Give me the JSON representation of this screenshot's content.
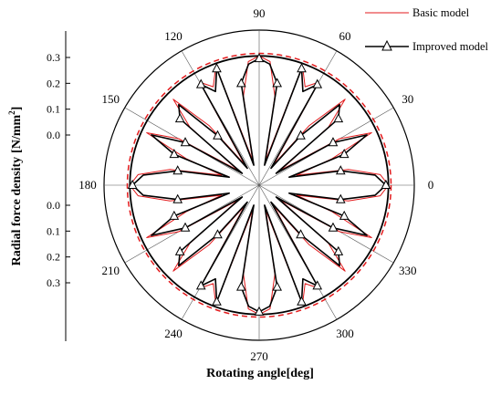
{
  "chart_data": {
    "type": "polar-line",
    "xlabel": "Rotating angle[deg]",
    "ylabel": "Radial force density",
    "ylabel_unit": "[N/mm",
    "ylabel_unit_sup": "2",
    "ylabel_unit_end": "]",
    "angle_ticks": [
      "0",
      "30",
      "60",
      "90",
      "120",
      "150",
      "180",
      "210",
      "240",
      "270",
      "300",
      "330"
    ],
    "radial_axis": {
      "ticks_upper": [
        "0.3",
        "0.2",
        "0.1",
        "0.0"
      ],
      "ticks_lower": [
        "0.0",
        "0.1",
        "0.2",
        "0.3"
      ],
      "range": [
        0,
        0.3
      ],
      "center_value": -0.3,
      "grid": true
    },
    "reference_circles": [
      {
        "name": "outer",
        "value": 0.3,
        "style": "solid",
        "color": "#000000"
      },
      {
        "name": "improved-envelope",
        "value": 0.2,
        "style": "solid",
        "color": "#000000"
      },
      {
        "name": "basic-envelope",
        "value": 0.21,
        "style": "dashed",
        "color": "#e31a1c"
      }
    ],
    "series": [
      {
        "name": "Basic model",
        "color": "#e31a1c",
        "marker": "none",
        "angles_deg": [
          0,
          5,
          10,
          15,
          20,
          25,
          30,
          35,
          40,
          45,
          50,
          55,
          60,
          65,
          70,
          75,
          80,
          85,
          90,
          95,
          100,
          105,
          110,
          115,
          120,
          125,
          130,
          135,
          140,
          145,
          150,
          155,
          160,
          165,
          170,
          175,
          180,
          185,
          190,
          195,
          200,
          205,
          210,
          215,
          220,
          225,
          230,
          235,
          240,
          245,
          250,
          255,
          260,
          265,
          270,
          275,
          280,
          285,
          290,
          295,
          300,
          305,
          310,
          315,
          320,
          325,
          330,
          335,
          340,
          345,
          350,
          355,
          360
        ],
        "values": [
          0.2,
          0.17,
          0.05,
          -0.15,
          0.0,
          0.18,
          0.06,
          -0.2,
          0.05,
          0.17,
          0.0,
          -0.2,
          0.16,
          0.12,
          0.19,
          -0.2,
          0.05,
          0.18,
          0.2,
          0.18,
          0.05,
          -0.2,
          0.19,
          0.12,
          0.16,
          -0.2,
          0.0,
          0.17,
          0.05,
          -0.2,
          0.06,
          0.18,
          0.0,
          -0.15,
          0.05,
          0.17,
          0.2,
          0.17,
          0.05,
          -0.15,
          0.0,
          0.18,
          0.06,
          -0.2,
          0.05,
          0.17,
          0.0,
          -0.2,
          0.16,
          0.12,
          0.19,
          -0.2,
          0.05,
          0.18,
          0.2,
          0.18,
          0.05,
          -0.2,
          0.19,
          0.12,
          0.16,
          -0.2,
          0.0,
          0.17,
          0.05,
          -0.2,
          0.06,
          0.18,
          0.0,
          -0.15,
          0.05,
          0.17,
          0.2
        ]
      },
      {
        "name": "Improved model",
        "color": "#000000",
        "marker": "triangle-open",
        "angles_deg": [
          0,
          5,
          10,
          15,
          20,
          25,
          30,
          35,
          40,
          45,
          50,
          55,
          60,
          65,
          70,
          75,
          80,
          85,
          90,
          95,
          100,
          105,
          110,
          115,
          120,
          125,
          130,
          135,
          140,
          145,
          150,
          155,
          160,
          165,
          170,
          175,
          180,
          185,
          190,
          195,
          200,
          205,
          210,
          215,
          220,
          225,
          230,
          235,
          240,
          245,
          250,
          255,
          260,
          265,
          270,
          275,
          280,
          285,
          290,
          295,
          300,
          305,
          310,
          315,
          320,
          325,
          330,
          335,
          340,
          345,
          350,
          355,
          360
        ],
        "values": [
          0.19,
          0.15,
          0.02,
          -0.18,
          0.05,
          0.16,
          0.03,
          -0.22,
          0.1,
          0.14,
          -0.05,
          -0.22,
          0.15,
          0.1,
          0.18,
          -0.22,
          0.1,
          0.17,
          0.19,
          0.17,
          0.1,
          -0.22,
          0.18,
          0.1,
          0.15,
          -0.22,
          -0.05,
          0.14,
          0.1,
          -0.22,
          0.03,
          0.16,
          0.05,
          -0.18,
          0.02,
          0.15,
          0.19,
          0.15,
          0.02,
          -0.18,
          0.05,
          0.16,
          0.03,
          -0.22,
          0.1,
          0.14,
          -0.05,
          -0.22,
          0.15,
          0.1,
          0.18,
          -0.22,
          0.1,
          0.17,
          0.19,
          0.17,
          0.1,
          -0.22,
          0.18,
          0.1,
          0.15,
          -0.22,
          -0.05,
          0.14,
          0.1,
          -0.22,
          0.03,
          0.16,
          0.05,
          -0.18,
          0.02,
          0.15,
          0.19
        ]
      }
    ],
    "legend": {
      "placement": "top-right"
    }
  }
}
